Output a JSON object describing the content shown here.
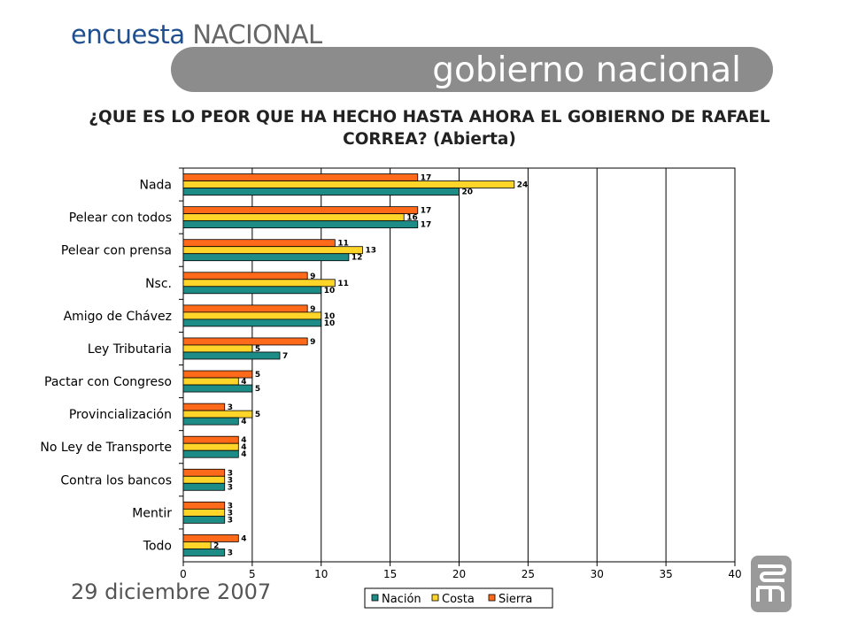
{
  "brand": {
    "word1": "encuesta",
    "word2": "NACIONAL"
  },
  "banner": {
    "title": "gobierno nacional"
  },
  "question": "¿QUE ES LO PEOR QUE HA HECHO HASTA AHORA EL GOBIERNO DE RAFAEL CORREA? (Abierta)",
  "footer": {
    "date": "29 diciembre 2007"
  },
  "logo": {
    "icon": "ssm-logo-icon"
  },
  "colors": {
    "nacion": "#1e8c86",
    "costa": "#ffd52a",
    "sierra": "#ff6a1a",
    "banner": "#8c8c8c",
    "brand": "#1f4f8e"
  },
  "chart_data": {
    "type": "bar",
    "orientation": "horizontal",
    "categories": [
      "Nada",
      "Pelear con todos",
      "Pelear con prensa",
      "Nsc.",
      "Amigo de Chávez",
      "Ley Tributaria",
      "Pactar con Congreso",
      "Provincialización",
      "No Ley de Transporte",
      "Contra los bancos",
      "Mentir",
      "Todo"
    ],
    "series": [
      {
        "name": "Sierra",
        "color": "#ff6a1a",
        "values": [
          17,
          17,
          11,
          9,
          9,
          9,
          5,
          3,
          4,
          3,
          3,
          4
        ]
      },
      {
        "name": "Costa",
        "color": "#ffd52a",
        "values": [
          24,
          16,
          13,
          11,
          10,
          5,
          4,
          5,
          4,
          3,
          3,
          2
        ]
      },
      {
        "name": "Nación",
        "color": "#1e8c86",
        "values": [
          20,
          17,
          12,
          10,
          10,
          7,
          5,
          4,
          4,
          3,
          3,
          3
        ]
      }
    ],
    "legend_order": [
      "Nación",
      "Costa",
      "Sierra"
    ],
    "xlim": [
      0,
      40
    ],
    "xticks": [
      0,
      5,
      10,
      15,
      20,
      25,
      30,
      35,
      40
    ],
    "grid": "vertical",
    "legend_position": "bottom"
  }
}
